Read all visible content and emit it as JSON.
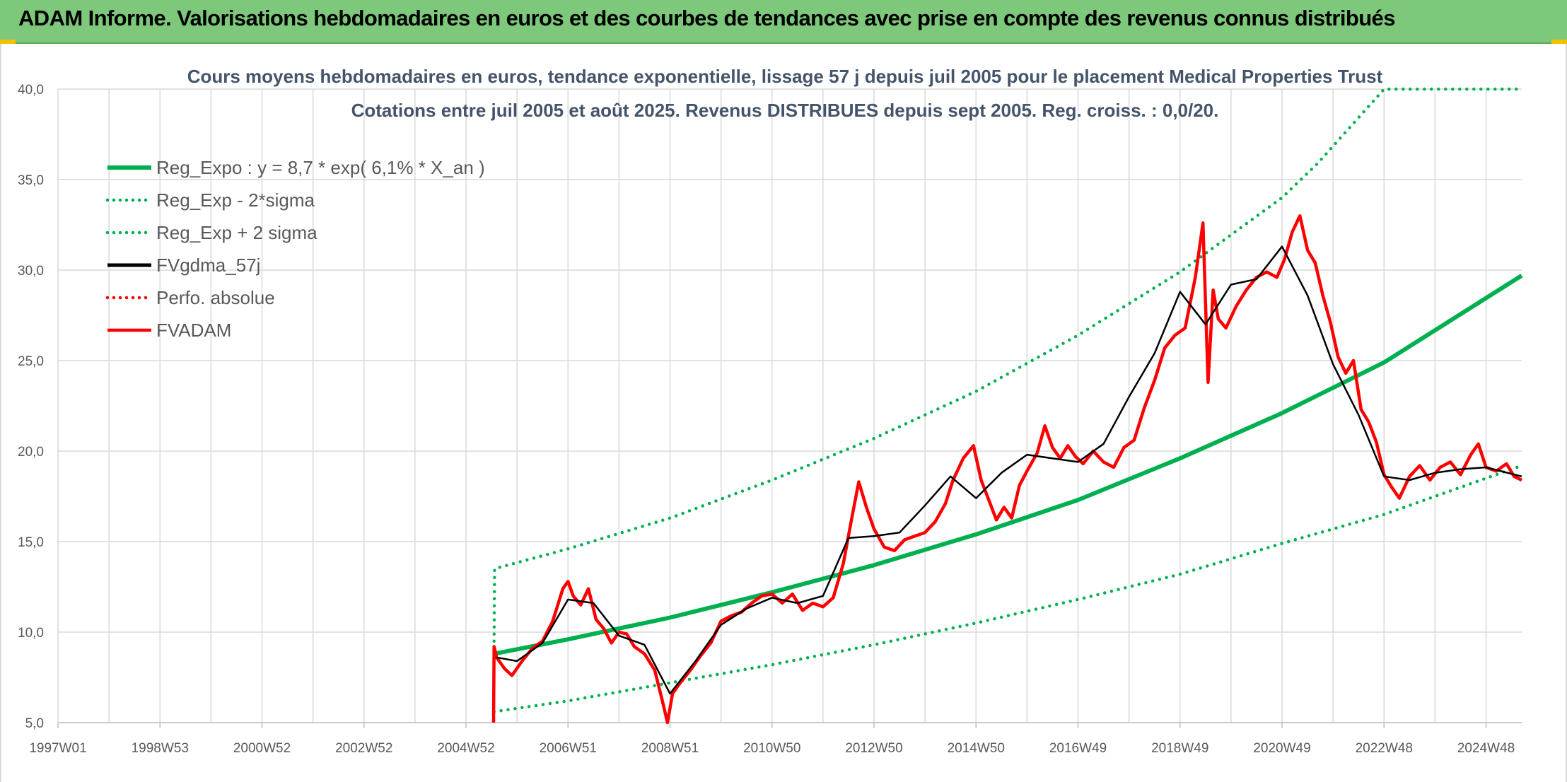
{
  "banner": {
    "title": "ADAM Informe. Valorisations hebdomadaires en euros et des courbes de tendances avec prise en compte des revenus connus distribués"
  },
  "colors": {
    "banner_bg": "#7dc87a",
    "trend_green": "#00b050",
    "smoothed_black": "#000000",
    "adam_red": "#ff0000",
    "grid": "#d9d9d9"
  },
  "chart_data": {
    "type": "line",
    "title": "Cours moyens hebdomadaires en euros, tendance exponentielle, lissage 57 j depuis juil 2005 pour le placement Medical Properties Trust",
    "subtitle": "Cotations entre juil 2005 et août 2025. Revenus DISTRIBUES depuis sept 2005. Reg. croiss. : 0,0/20.",
    "xlabel": "",
    "ylabel": "",
    "x_range": [
      1997.0,
      2025.7
    ],
    "ylim": [
      5,
      40
    ],
    "y_ticks": [
      "5,0",
      "10,0",
      "15,0",
      "20,0",
      "25,0",
      "30,0",
      "35,0",
      "40,0"
    ],
    "x_tick_labels": [
      "1997W01",
      "1998W53",
      "2000W52",
      "2002W52",
      "2004W52",
      "2006W51",
      "2008W51",
      "2010W50",
      "2012W50",
      "2014W50",
      "2016W49",
      "2018W49",
      "2020W49",
      "2022W48",
      "2024W48"
    ],
    "x_tick_values": [
      1997.0,
      1999.0,
      2001.0,
      2003.0,
      2005.0,
      2007.0,
      2009.0,
      2011.0,
      2013.0,
      2015.0,
      2017.0,
      2019.0,
      2021.0,
      2023.0,
      2025.0
    ],
    "grid": true,
    "legend": "top-left",
    "series": [
      {
        "name": "Reg_Expo : y = 8,7 * exp( 6,1% *  X_an )",
        "style": "solid-thick",
        "color": "#00b050",
        "x": [
          2005.55,
          2007.0,
          2009.0,
          2011.0,
          2013.0,
          2015.0,
          2017.0,
          2019.0,
          2021.0,
          2023.0,
          2025.7
        ],
        "y": [
          8.8,
          9.6,
          10.8,
          12.2,
          13.7,
          15.4,
          17.3,
          19.6,
          22.1,
          24.9,
          29.7
        ]
      },
      {
        "name": "Reg_Exp - 2*sigma",
        "style": "dotted",
        "color": "#00b050",
        "x": [
          2005.55,
          2007.0,
          2009.0,
          2011.0,
          2013.0,
          2015.0,
          2017.0,
          2019.0,
          2021.0,
          2023.0,
          2025.7
        ],
        "y": [
          5.6,
          6.2,
          7.2,
          8.2,
          9.3,
          10.5,
          11.8,
          13.2,
          14.9,
          16.5,
          19.2
        ]
      },
      {
        "name": "Reg_Exp + 2 sigma",
        "style": "dotted",
        "color": "#00b050",
        "x": [
          2005.55,
          2005.56,
          2007.0,
          2009.0,
          2011.0,
          2013.0,
          2015.0,
          2017.0,
          2019.0,
          2021.0,
          2021.7,
          2023.0,
          2025.7
        ],
        "y": [
          9.5,
          13.5,
          14.6,
          16.3,
          18.4,
          20.7,
          23.3,
          26.4,
          29.9,
          34.0,
          35.9,
          40.0,
          40.0
        ]
      },
      {
        "name": "FVgdma_57j",
        "style": "solid",
        "color": "#000000",
        "x": [
          2005.6,
          2006.0,
          2006.5,
          2007.0,
          2007.5,
          2008.0,
          2008.5,
          2009.0,
          2009.5,
          2010.0,
          2010.5,
          2011.0,
          2011.5,
          2012.0,
          2012.5,
          2013.0,
          2013.5,
          2014.0,
          2014.5,
          2015.0,
          2015.5,
          2016.0,
          2016.5,
          2017.0,
          2017.5,
          2018.0,
          2018.5,
          2019.0,
          2019.5,
          2020.0,
          2020.5,
          2021.0,
          2021.5,
          2022.0,
          2022.5,
          2023.0,
          2023.5,
          2024.0,
          2024.5,
          2025.0,
          2025.7
        ],
        "y": [
          8.6,
          8.4,
          9.4,
          11.8,
          11.6,
          9.8,
          9.3,
          6.6,
          8.4,
          10.4,
          11.3,
          11.9,
          11.6,
          12.0,
          15.2,
          15.3,
          15.5,
          17.0,
          18.6,
          17.4,
          18.8,
          19.8,
          19.6,
          19.4,
          20.4,
          23.0,
          25.4,
          28.8,
          27.0,
          29.2,
          29.5,
          31.3,
          28.6,
          24.8,
          22.0,
          18.6,
          18.4,
          18.8,
          19.0,
          19.1,
          18.6
        ]
      },
      {
        "name": "Perfo. absolue",
        "style": "dotted",
        "color": "#ff0000",
        "x": [],
        "y": []
      },
      {
        "name": "FVADAM",
        "style": "solid-thick",
        "color": "#ff0000",
        "x": [
          2005.54,
          2005.55,
          2005.6,
          2005.75,
          2005.9,
          2006.1,
          2006.3,
          2006.5,
          2006.7,
          2006.9,
          2007.0,
          2007.1,
          2007.25,
          2007.4,
          2007.55,
          2007.7,
          2007.85,
          2008.0,
          2008.15,
          2008.3,
          2008.5,
          2008.7,
          2008.85,
          2008.95,
          2009.05,
          2009.2,
          2009.4,
          2009.6,
          2009.8,
          2010.0,
          2010.2,
          2010.4,
          2010.6,
          2010.8,
          2011.0,
          2011.2,
          2011.4,
          2011.6,
          2011.8,
          2012.0,
          2012.2,
          2012.4,
          2012.55,
          2012.7,
          2012.85,
          2013.0,
          2013.2,
          2013.4,
          2013.6,
          2013.8,
          2014.0,
          2014.2,
          2014.4,
          2014.55,
          2014.75,
          2014.95,
          2015.1,
          2015.25,
          2015.4,
          2015.55,
          2015.7,
          2015.85,
          2016.0,
          2016.2,
          2016.35,
          2016.5,
          2016.65,
          2016.8,
          2016.95,
          2017.1,
          2017.3,
          2017.5,
          2017.7,
          2017.9,
          2018.1,
          2018.3,
          2018.5,
          2018.7,
          2018.9,
          2019.1,
          2019.3,
          2019.45,
          2019.55,
          2019.65,
          2019.75,
          2019.9,
          2020.1,
          2020.3,
          2020.5,
          2020.7,
          2020.9,
          2021.05,
          2021.2,
          2021.35,
          2021.5,
          2021.65,
          2021.8,
          2021.95,
          2022.1,
          2022.25,
          2022.4,
          2022.55,
          2022.7,
          2022.85,
          2023.0,
          2023.15,
          2023.3,
          2023.5,
          2023.7,
          2023.9,
          2024.1,
          2024.3,
          2024.5,
          2024.7,
          2024.85,
          2025.0,
          2025.2,
          2025.4,
          2025.55,
          2025.7
        ],
        "y": [
          5.0,
          9.2,
          8.6,
          8.0,
          7.6,
          8.4,
          9.1,
          9.5,
          10.6,
          12.4,
          12.8,
          12.0,
          11.5,
          12.4,
          10.7,
          10.2,
          9.4,
          10.0,
          9.9,
          9.2,
          8.8,
          7.9,
          6.2,
          5.0,
          6.6,
          7.2,
          7.9,
          8.7,
          9.4,
          10.6,
          10.9,
          11.1,
          11.6,
          12.0,
          12.1,
          11.6,
          12.1,
          11.2,
          11.6,
          11.4,
          11.9,
          13.8,
          16.1,
          18.3,
          16.9,
          15.7,
          14.7,
          14.5,
          15.1,
          15.3,
          15.5,
          16.1,
          17.1,
          18.4,
          19.6,
          20.3,
          18.4,
          17.3,
          16.2,
          16.9,
          16.3,
          18.1,
          18.9,
          19.9,
          21.4,
          20.2,
          19.6,
          20.3,
          19.7,
          19.3,
          20.0,
          19.4,
          19.1,
          20.2,
          20.6,
          22.4,
          23.9,
          25.7,
          26.4,
          26.8,
          29.6,
          32.6,
          23.8,
          28.9,
          27.3,
          26.8,
          28.0,
          28.9,
          29.6,
          29.9,
          29.6,
          30.6,
          32.1,
          33.0,
          31.1,
          30.4,
          28.6,
          27.1,
          25.2,
          24.3,
          25.0,
          22.3,
          21.6,
          20.5,
          18.7,
          18.0,
          17.4,
          18.6,
          19.2,
          18.4,
          19.1,
          19.4,
          18.7,
          19.8,
          20.4,
          19.1,
          18.9,
          19.3,
          18.6,
          18.4
        ]
      }
    ]
  }
}
